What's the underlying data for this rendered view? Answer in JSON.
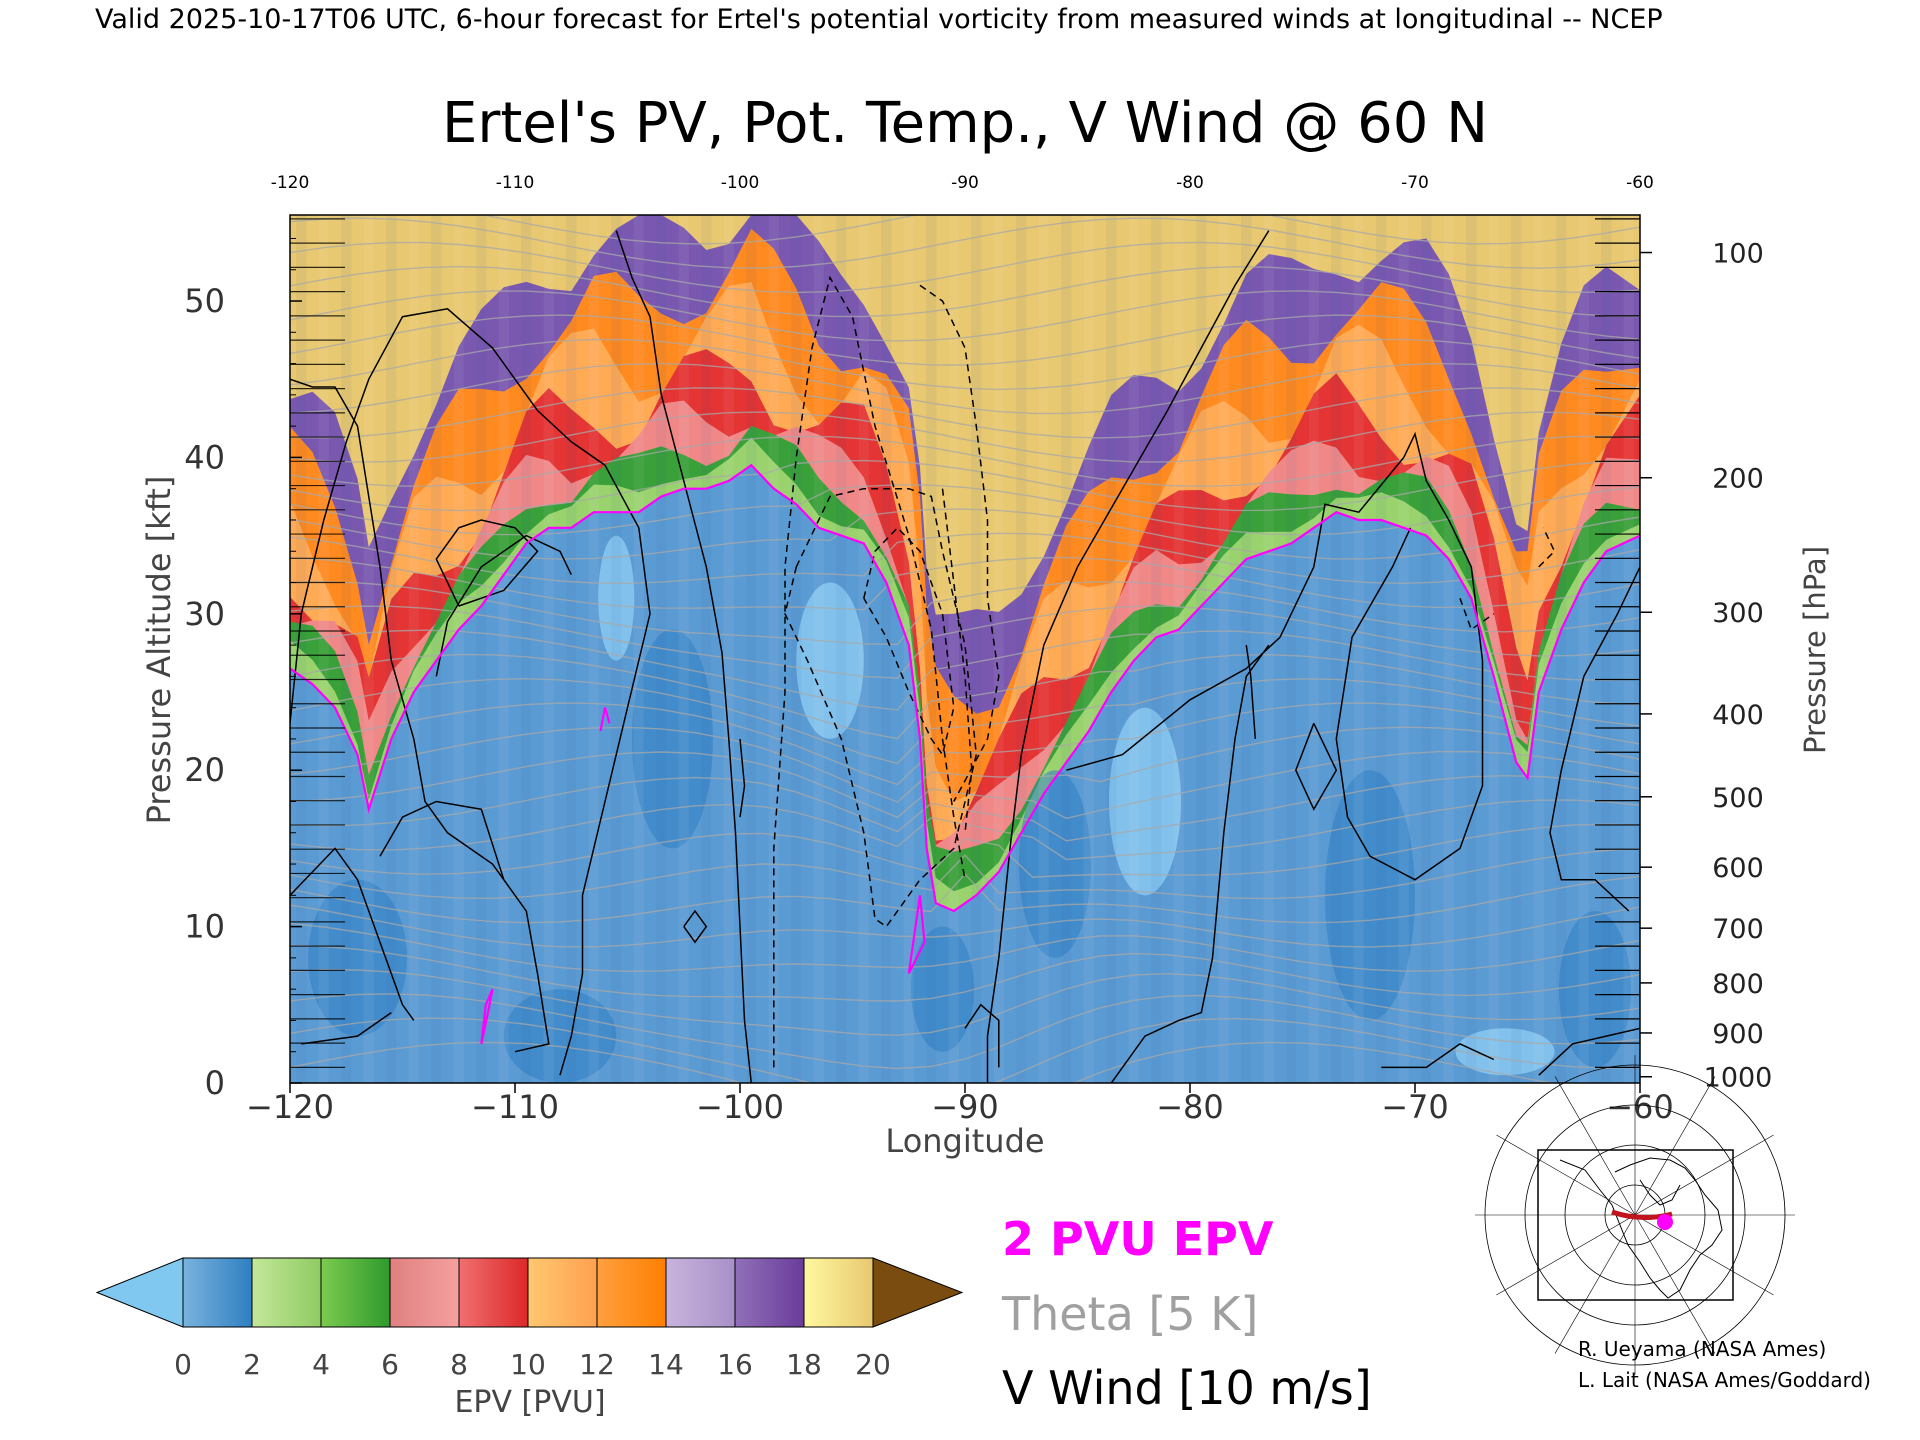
{
  "header": {
    "banner": "Valid 2025-10-17T06 UTC, 6-hour forecast for Ertel's potential vorticity from measured winds at longitudinal -- NCEP"
  },
  "chart_data": {
    "type": "heatmap",
    "title": "Ertel's PV, Pot. Temp., V Wind @ 60 N",
    "xlabel": "Longitude",
    "ylabel": "Pressure Altitude [kft]",
    "y2label": "Pressure [hPa]",
    "xlim": [
      -120,
      -60
    ],
    "ylim": [
      0,
      55.5
    ],
    "x_ticks": [
      -120,
      -110,
      -100,
      -90,
      -80,
      -70,
      -60
    ],
    "x_tick_labels": [
      "−120",
      "−110",
      "−100",
      "−90",
      "−80",
      "−70",
      "−60"
    ],
    "top_tick_labels": [
      "-120",
      "-110",
      "-100",
      "-90",
      "-80",
      "-70",
      "-60"
    ],
    "y_ticks": [
      0,
      10,
      20,
      30,
      40,
      50
    ],
    "y_tick_labels": [
      "0",
      "10",
      "20",
      "30",
      "40",
      "50"
    ],
    "pressure_ticks": [
      {
        "hpa": 100,
        "label": "100",
        "kft": 53.1
      },
      {
        "hpa": 200,
        "label": "200",
        "kft": 38.7
      },
      {
        "hpa": 300,
        "label": "300",
        "kft": 30.1
      },
      {
        "hpa": 400,
        "label": "400",
        "kft": 23.6
      },
      {
        "hpa": 500,
        "label": "500",
        "kft": 18.3
      },
      {
        "hpa": 600,
        "label": "600",
        "kft": 13.8
      },
      {
        "hpa": 700,
        "label": "700",
        "kft": 9.9
      },
      {
        "hpa": 800,
        "label": "800",
        "kft": 6.4
      },
      {
        "hpa": 900,
        "label": "900",
        "kft": 3.2
      },
      {
        "hpa": 1000,
        "label": "1000",
        "kft": 0.4
      }
    ],
    "colorbar": {
      "label": "EPV [PVU]",
      "min": 0,
      "max": 20,
      "tick_values": [
        0,
        2,
        4,
        6,
        8,
        10,
        12,
        14,
        16,
        18,
        20
      ],
      "tick_labels": [
        "0",
        "2",
        "4",
        "6",
        "8",
        "10",
        "12",
        "14",
        "16",
        "18",
        "20"
      ],
      "under_color": "#80c8f0",
      "over_color": "#7a4c10",
      "bands": [
        [
          "#7ab3dd",
          "#2e7fc2"
        ],
        [
          "#c4e79a",
          "#8fcb62"
        ],
        [
          "#7ccb4e",
          "#2e9a2e"
        ],
        [
          "#e08080",
          "#f5a0a0"
        ],
        [
          "#f07070",
          "#dc2828"
        ],
        [
          "#ffc870",
          "#ffa050"
        ],
        [
          "#ffa040",
          "#ff7f00"
        ],
        [
          "#c8b4dc",
          "#a890c8"
        ],
        [
          "#9070b8",
          "#6a3c9a"
        ],
        [
          "#fff8a0",
          "#e8c870"
        ]
      ]
    },
    "series": [
      {
        "name": "2 PVU EPV",
        "color": "#ff00ff",
        "points": [
          [
            -120,
            26.5
          ],
          [
            -119,
            25.5
          ],
          [
            -118,
            24
          ],
          [
            -117,
            21
          ],
          [
            -116.5,
            17.5
          ],
          [
            -115.5,
            22
          ],
          [
            -114.5,
            25
          ],
          [
            -113.5,
            27
          ],
          [
            -112.5,
            29
          ],
          [
            -111.5,
            30.5
          ],
          [
            -110.5,
            32.5
          ],
          [
            -109.5,
            34.5
          ],
          [
            -108.5,
            35.5
          ],
          [
            -107.5,
            35.5
          ],
          [
            -106.5,
            36.5
          ],
          [
            -105.5,
            36.5
          ],
          [
            -104.5,
            36.5
          ],
          [
            -103.5,
            37.5
          ],
          [
            -102.5,
            38
          ],
          [
            -101.5,
            38
          ],
          [
            -100.5,
            38.5
          ],
          [
            -99.5,
            39.5
          ],
          [
            -98.5,
            38
          ],
          [
            -97.5,
            37
          ],
          [
            -96.5,
            35.5
          ],
          [
            -95.5,
            35
          ],
          [
            -94.5,
            34.5
          ],
          [
            -93.5,
            32
          ],
          [
            -92.5,
            28
          ],
          [
            -92,
            22
          ],
          [
            -91.7,
            15
          ],
          [
            -91.3,
            11.5
          ],
          [
            -90.5,
            11
          ],
          [
            -89.5,
            12
          ],
          [
            -88.5,
            13.5
          ],
          [
            -87.5,
            16
          ],
          [
            -86.5,
            18.5
          ],
          [
            -85.5,
            20.5
          ],
          [
            -84.5,
            22.5
          ],
          [
            -83.5,
            25
          ],
          [
            -82.5,
            27
          ],
          [
            -81.5,
            28.5
          ],
          [
            -80.5,
            29
          ],
          [
            -79.5,
            30.5
          ],
          [
            -78.5,
            32
          ],
          [
            -77.5,
            33.5
          ],
          [
            -76.5,
            34
          ],
          [
            -75.5,
            34.5
          ],
          [
            -74.5,
            35.5
          ],
          [
            -73.5,
            36.5
          ],
          [
            -72.5,
            36
          ],
          [
            -71.5,
            36
          ],
          [
            -70.5,
            35.5
          ],
          [
            -69.5,
            35
          ],
          [
            -68.5,
            33.5
          ],
          [
            -67.5,
            31
          ],
          [
            -66.5,
            26
          ],
          [
            -65.5,
            20.5
          ],
          [
            -65,
            19.5
          ],
          [
            -64.5,
            25
          ],
          [
            -63.5,
            29
          ],
          [
            -62.5,
            32
          ],
          [
            -61.5,
            34
          ],
          [
            -60,
            35
          ]
        ]
      }
    ],
    "legend": [
      {
        "label": "2 PVU EPV",
        "color": "#ff00ff"
      },
      {
        "label": "Theta [5 K]",
        "color": "#a0a0a0"
      },
      {
        "label": "V Wind [10 m/s]",
        "color": "#000000"
      }
    ],
    "legend_placement": "bottom-center"
  },
  "inset_map": {
    "marker_color": "#ff00ff",
    "track_color": "#c0141e"
  },
  "credits": {
    "line1": "R. Ueyama (NASA Ames)",
    "line2": "L. Lait (NASA Ames/Goddard)"
  }
}
